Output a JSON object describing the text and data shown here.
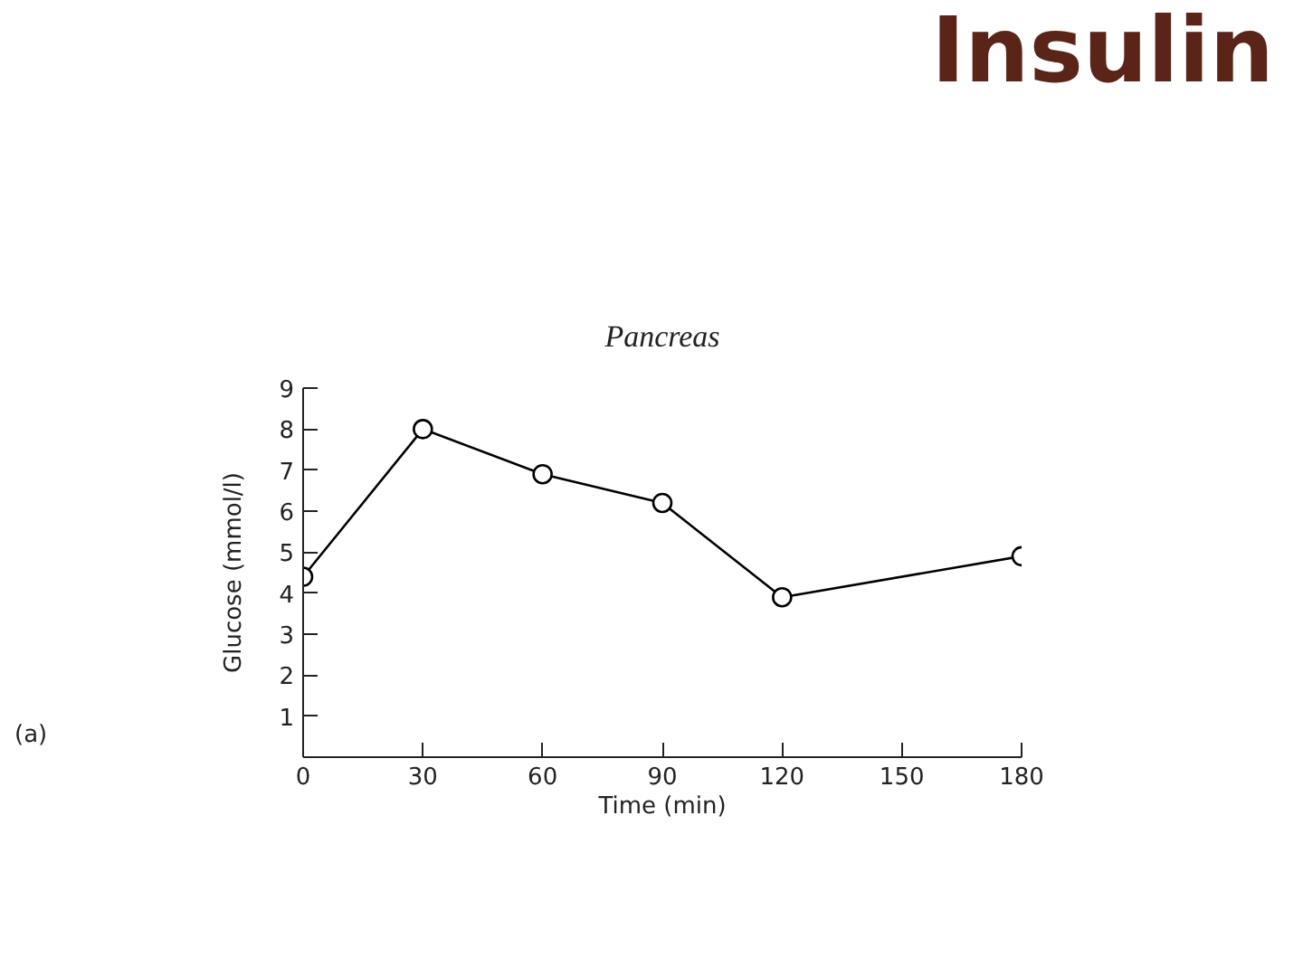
{
  "chart_data": {
    "type": "line",
    "title": "Insulin",
    "subtitle": "Pancreas",
    "xlabel": "Time (min)",
    "ylabel": "Glucose (mmol/l)",
    "annotations": [
      "(a)"
    ],
    "x": [
      0,
      30,
      60,
      90,
      120,
      180
    ],
    "series": [
      {
        "color": "#000000",
        "values": [
          4.4,
          8.0,
          6.9,
          6.2,
          3.9,
          4.9
        ]
      }
    ],
    "xlim": [
      0,
      180
    ],
    "ylim": [
      0,
      9
    ],
    "xticks": [
      0,
      30,
      60,
      90,
      120,
      150,
      180
    ],
    "yticks": [
      1,
      2,
      3,
      4,
      5,
      6,
      7,
      8,
      9
    ],
    "marker": "circle",
    "line_style": "solid"
  }
}
